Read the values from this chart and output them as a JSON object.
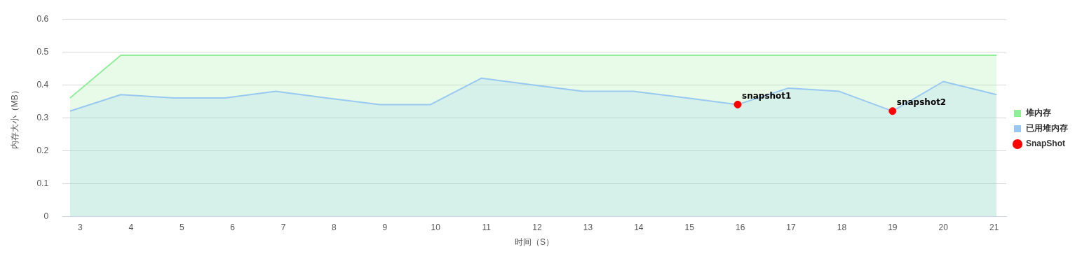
{
  "chart_data": {
    "type": "area",
    "xlabel": "时间（S）",
    "ylabel": "内存大小（MB）",
    "x": [
      2.8,
      3.8,
      4.85,
      5.85,
      6.85,
      7.85,
      8.9,
      9.9,
      10.9,
      11.9,
      12.9,
      13.9,
      14.95,
      15.95,
      16.95,
      17.95,
      19.0,
      20.0,
      21.05
    ],
    "series": [
      {
        "name": "堆内存",
        "color": "#90ee98",
        "values": [
          0.36,
          0.49,
          0.49,
          0.49,
          0.49,
          0.49,
          0.49,
          0.49,
          0.49,
          0.49,
          0.49,
          0.49,
          0.49,
          0.49,
          0.49,
          0.49,
          0.49,
          0.49,
          0.49
        ]
      },
      {
        "name": "已用堆内存",
        "color": "#99c9f0",
        "values": [
          0.32,
          0.37,
          0.36,
          0.36,
          0.38,
          0.36,
          0.34,
          0.34,
          0.42,
          0.4,
          0.38,
          0.38,
          0.36,
          0.34,
          0.39,
          0.38,
          0.32,
          0.41,
          0.37
        ]
      },
      {
        "name": "SnapShot",
        "type": "scatter",
        "marker": "circle",
        "color": "#ff0000",
        "x": [
          15.95,
          19.0
        ],
        "values": [
          0.34,
          0.32
        ]
      }
    ],
    "annotations": [
      {
        "text": "snapshot1",
        "x": 15.95,
        "y": 0.34
      },
      {
        "text": "snapshot2",
        "x": 19.0,
        "y": 0.32
      }
    ],
    "xlim": [
      2.65,
      21.24
    ],
    "xticks": [
      3,
      4,
      5,
      6,
      7,
      8,
      9,
      10,
      11,
      12,
      13,
      14,
      15,
      16,
      17,
      18,
      19,
      20,
      21
    ],
    "ylim": [
      0,
      0.6
    ],
    "yticks": [
      0,
      0.1,
      0.2,
      0.3,
      0.4,
      0.5,
      0.6
    ],
    "grid": "y",
    "legend": "right"
  }
}
